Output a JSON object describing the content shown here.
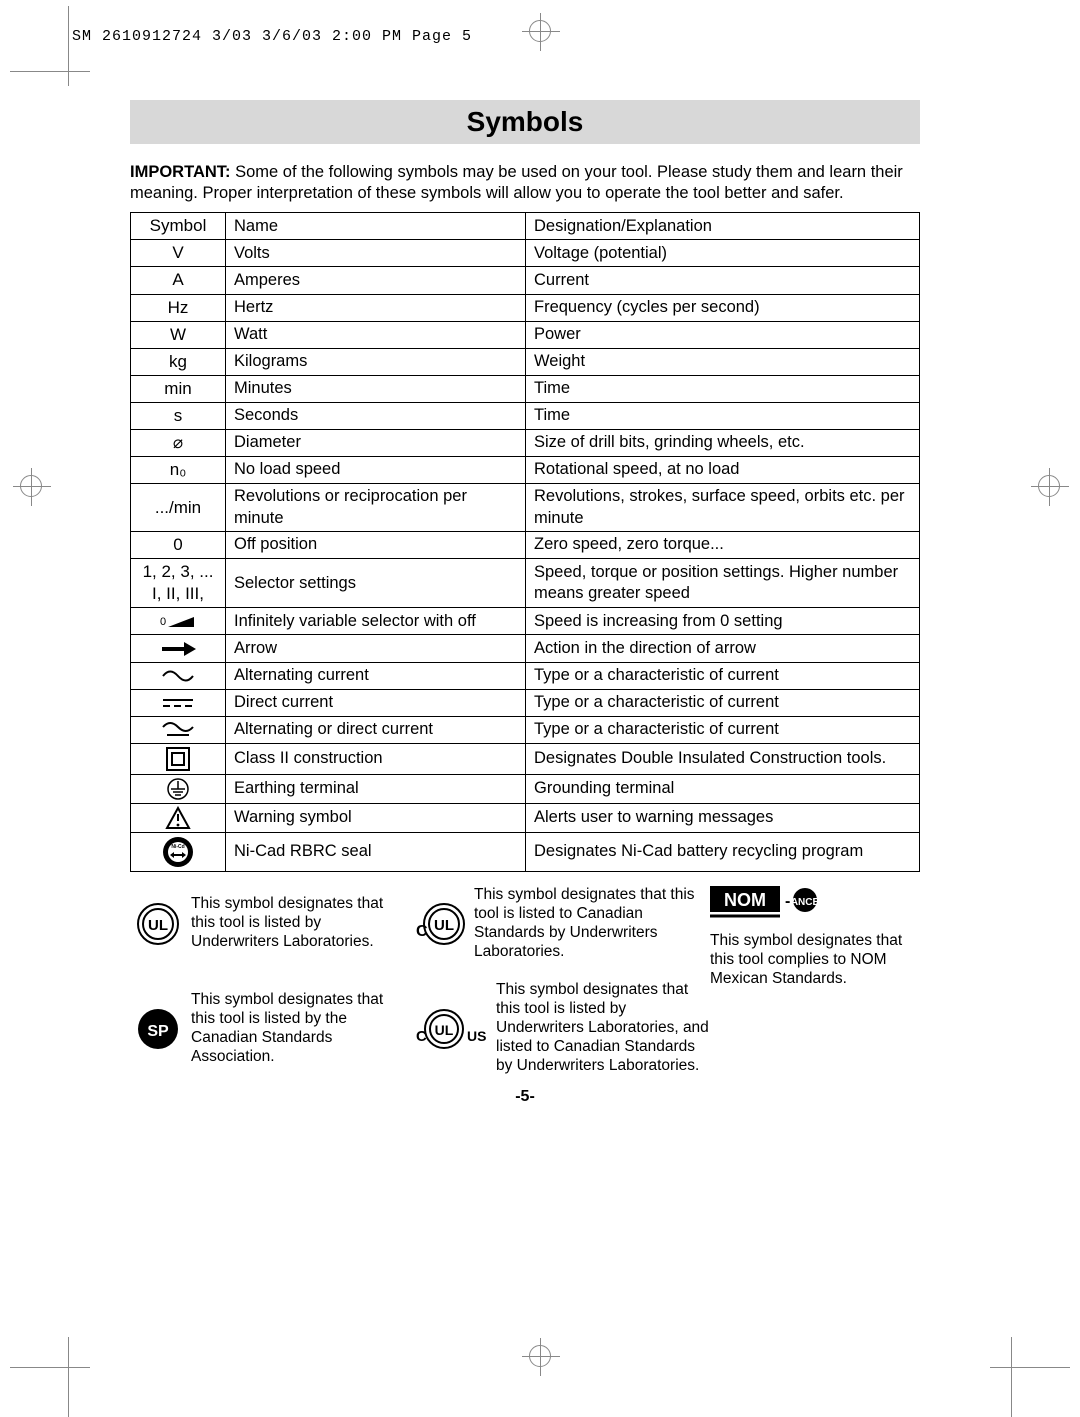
{
  "header": "SM 2610912724 3/03  3/6/03  2:00 PM  Page 5",
  "title": "Symbols",
  "intro_bold": "IMPORTANT:",
  "intro_rest": " Some of the following symbols may be used on your tool.  Please study them and learn their meaning.  Proper interpretation of these symbols will allow you to operate the tool better and safer.",
  "columns": {
    "c1": "Symbol",
    "c2": "Name",
    "c3": "Designation/Explanation"
  },
  "rows": [
    {
      "sym": "V",
      "name": "Volts",
      "desc": "Voltage (potential)"
    },
    {
      "sym": "A",
      "name": "Amperes",
      "desc": "Current"
    },
    {
      "sym": "Hz",
      "name": "Hertz",
      "desc": "Frequency (cycles per second)"
    },
    {
      "sym": "W",
      "name": "Watt",
      "desc": "Power"
    },
    {
      "sym": "kg",
      "name": "Kilograms",
      "desc": "Weight"
    },
    {
      "sym": "min",
      "name": "Minutes",
      "desc": "Time"
    },
    {
      "sym": "s",
      "name": "Seconds",
      "desc": "Time"
    },
    {
      "sym": "⌀",
      "name": "Diameter",
      "desc": "Size of drill bits, grinding wheels,  etc."
    },
    {
      "sym": "n₀",
      "name": "No load speed",
      "desc": "Rotational speed, at no load"
    },
    {
      "sym": ".../min",
      "name": "Revolutions or reciprocation per minute",
      "desc": "Revolutions, strokes, surface speed, orbits etc. per minute"
    },
    {
      "sym": "0",
      "name": "Off position",
      "desc": "Zero speed, zero torque..."
    },
    {
      "sym": "1, 2, 3, ...\nI, II, III,",
      "name": "Selector settings",
      "desc": "Speed, torque or position settings. Higher number means greater speed"
    },
    {
      "sym": "SVG:ramp",
      "name": "Infinitely variable selector with off",
      "desc": "Speed is increasing from 0 setting"
    },
    {
      "sym": "SVG:arrow",
      "name": "Arrow",
      "desc": "Action in the direction of arrow"
    },
    {
      "sym": "SVG:ac",
      "name": "Alternating current",
      "desc": "Type or a characteristic of current"
    },
    {
      "sym": "SVG:dc",
      "name": "Direct current",
      "desc": "Type or a characteristic of current"
    },
    {
      "sym": "SVG:acdc",
      "name": "Alternating or direct current",
      "desc": "Type or a characteristic of current"
    },
    {
      "sym": "SVG:class2",
      "name": "Class II  construction",
      "desc": "Designates Double Insulated Construction tools."
    },
    {
      "sym": "SVG:earth",
      "name": "Earthing terminal",
      "desc": "Grounding terminal"
    },
    {
      "sym": "SVG:warn",
      "name": "Warning symbol",
      "desc": "Alerts user to warning messages"
    },
    {
      "sym": "SVG:rbrc",
      "name": "Ni-Cad RBRC seal",
      "desc": "Designates Ni-Cad battery recycling program"
    }
  ],
  "certs": {
    "ul": "This symbol designates that this tool is listed by Underwriters Laboratories.",
    "cul": "This symbol designates that this tool is listed to Canadian Standards by Underwriters Laboratories.",
    "csa": "This symbol designates that this tool is listed by the Canadian Standards Association.",
    "culus": "This symbol designates that this tool is listed by Underwriters Laboratories, and listed to Canadian Standards by Underwriters Laboratories.",
    "nom": "This symbol designates that this tool complies to NOM Mexican Standards."
  },
  "page_number": "-5-",
  "colors": {
    "title_bg": "#d8d8d8",
    "text": "#000000",
    "bg": "#ffffff",
    "cropmark": "#888888"
  },
  "fonts": {
    "body_size_pt": 12,
    "title_size_pt": 20,
    "header_family": "Courier New"
  }
}
